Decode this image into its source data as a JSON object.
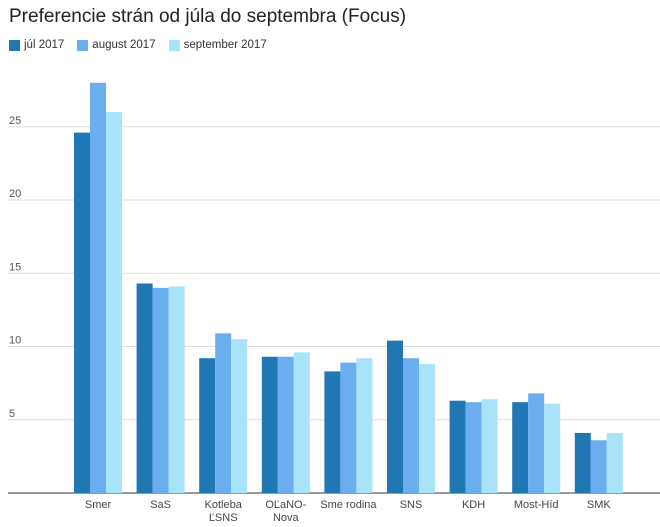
{
  "chart_data": {
    "type": "bar",
    "title": "Preferencie strán od júla do septembra (Focus)",
    "xlabel": "",
    "ylabel": "",
    "categories": [
      "Smer",
      "SaS",
      "Kotleba\nĽSNS",
      "OĽaNO-\nNova",
      "Sme rodina",
      "SNS",
      "KDH",
      "Most-Híd",
      "SMK"
    ],
    "series": [
      {
        "name": "júl 2017",
        "color": "#1f77b4",
        "values": [
          24.6,
          14.3,
          9.2,
          9.3,
          8.3,
          10.4,
          6.3,
          6.2,
          4.1
        ]
      },
      {
        "name": "august 2017",
        "color": "#6baef0",
        "values": [
          28.0,
          14.0,
          10.9,
          9.3,
          8.9,
          9.2,
          6.2,
          6.8,
          3.6
        ]
      },
      {
        "name": "september 2017",
        "color": "#a9e3fa",
        "values": [
          26.0,
          14.1,
          10.5,
          9.6,
          9.2,
          8.8,
          6.4,
          6.1,
          4.1
        ]
      }
    ],
    "ylim": [
      0,
      30
    ],
    "yticks": [
      5,
      10,
      15,
      20,
      25
    ],
    "grid": true,
    "legend_position": "top-left"
  }
}
